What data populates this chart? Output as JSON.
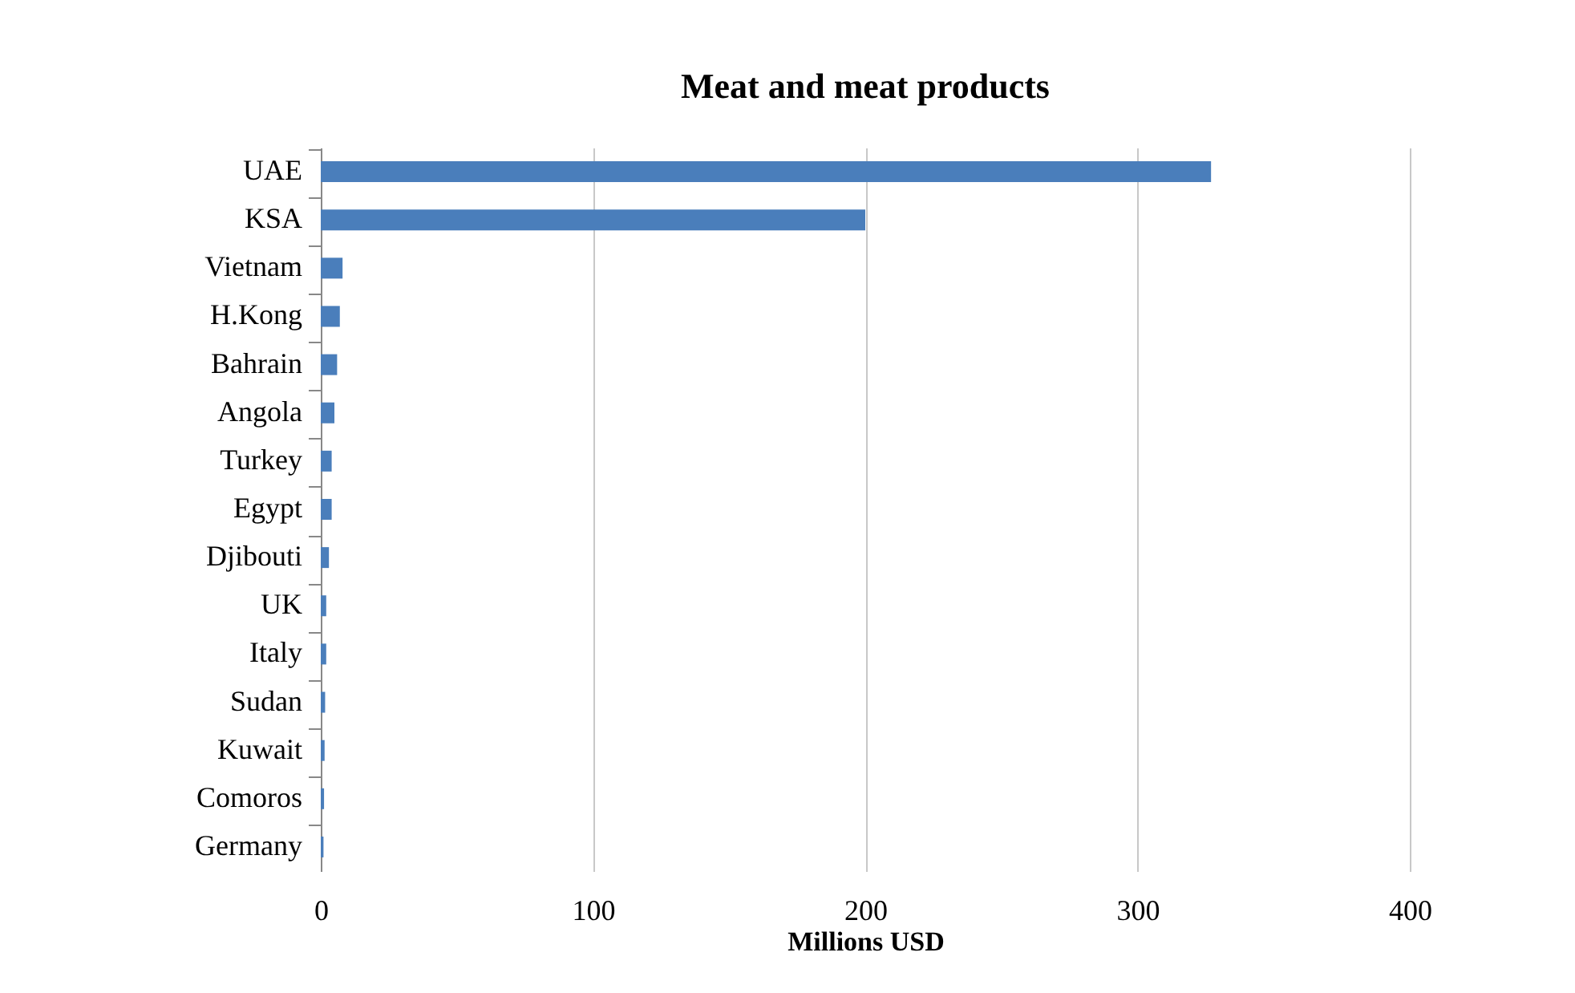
{
  "chart_data": {
    "type": "bar",
    "orientation": "horizontal",
    "title": "Meat and meat products",
    "xlabel": "Millions USD",
    "categories": [
      "UAE",
      "KSA",
      "Vietnam",
      "H.Kong",
      "Bahrain",
      "Angola",
      "Turkey",
      "Egypt",
      "Djibouti",
      "UK",
      "Italy",
      "Sudan",
      "Kuwait",
      "Comoros",
      "Germany"
    ],
    "values": [
      327,
      200,
      8,
      7,
      6,
      5,
      4,
      4,
      3,
      2,
      2,
      1.6,
      1.4,
      1.2,
      1
    ],
    "color": "#4a7ebb",
    "xlim": [
      0,
      400
    ],
    "xticks": [
      0,
      100,
      200,
      300,
      400
    ],
    "grid": "x"
  }
}
